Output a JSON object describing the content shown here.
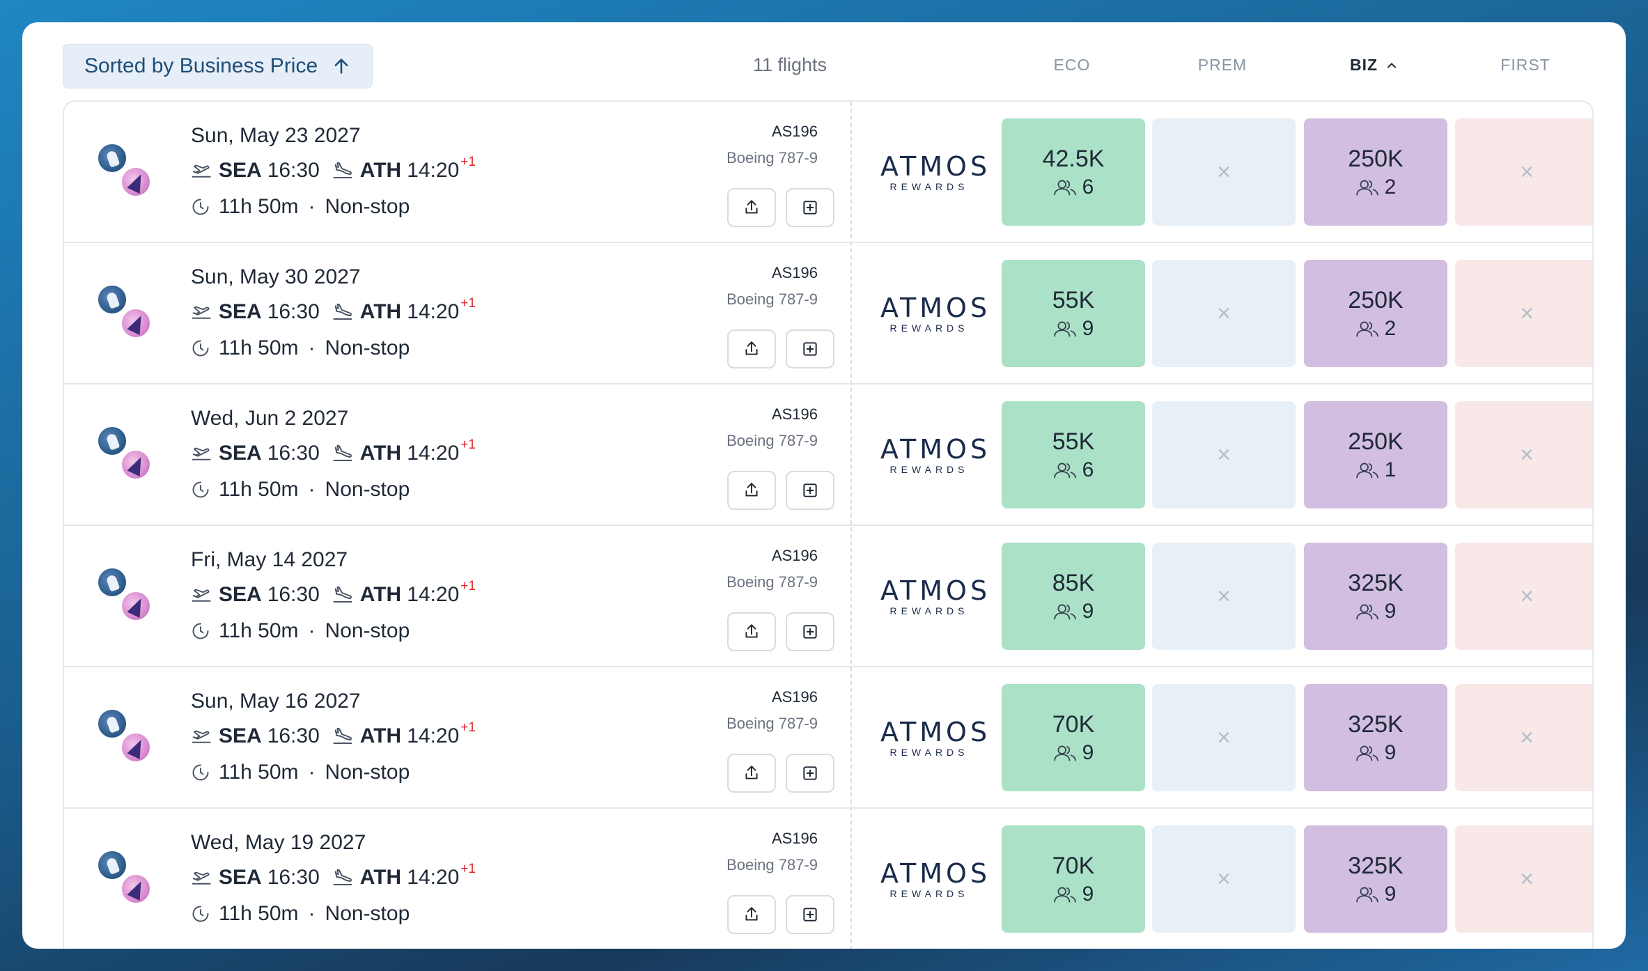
{
  "header": {
    "sort_label": "Sorted by Business Price",
    "flight_count": "11 flights",
    "columns": {
      "eco": "ECO",
      "prem": "PREM",
      "biz": "BIZ",
      "first": "FIRST"
    }
  },
  "brand": {
    "line1": "ATMOS",
    "line2": "REWARDS"
  },
  "icons": {
    "departure": "takeoff-icon",
    "arrival": "landing-icon",
    "duration": "clock-icon",
    "share": "share-icon",
    "add": "add-square-icon",
    "seats": "users-icon",
    "unavailable": "x-icon"
  },
  "colors": {
    "eco": "#abe1c6",
    "prem": "#e8f0f7",
    "biz": "#d2bee1",
    "first": "#f9e8e8",
    "day_offset": "#dc2626"
  },
  "flights": [
    {
      "date": "Sun, May 23 2027",
      "from": "SEA",
      "dep": "16:30",
      "to": "ATH",
      "arr": "14:20",
      "offset": "+1",
      "duration": "11h 50m",
      "stops": "Non-stop",
      "flight_no": "AS196",
      "aircraft": "Boeing 787-9",
      "eco_price": "42.5K",
      "eco_seats": "6",
      "biz_price": "250K",
      "biz_seats": "2",
      "prem": "×",
      "first": "×"
    },
    {
      "date": "Sun, May 30 2027",
      "from": "SEA",
      "dep": "16:30",
      "to": "ATH",
      "arr": "14:20",
      "offset": "+1",
      "duration": "11h 50m",
      "stops": "Non-stop",
      "flight_no": "AS196",
      "aircraft": "Boeing 787-9",
      "eco_price": "55K",
      "eco_seats": "9",
      "biz_price": "250K",
      "biz_seats": "2",
      "prem": "×",
      "first": "×"
    },
    {
      "date": "Wed, Jun 2 2027",
      "from": "SEA",
      "dep": "16:30",
      "to": "ATH",
      "arr": "14:20",
      "offset": "+1",
      "duration": "11h 50m",
      "stops": "Non-stop",
      "flight_no": "AS196",
      "aircraft": "Boeing 787-9",
      "eco_price": "55K",
      "eco_seats": "6",
      "biz_price": "250K",
      "biz_seats": "1",
      "prem": "×",
      "first": "×"
    },
    {
      "date": "Fri, May 14 2027",
      "from": "SEA",
      "dep": "16:30",
      "to": "ATH",
      "arr": "14:20",
      "offset": "+1",
      "duration": "11h 50m",
      "stops": "Non-stop",
      "flight_no": "AS196",
      "aircraft": "Boeing 787-9",
      "eco_price": "85K",
      "eco_seats": "9",
      "biz_price": "325K",
      "biz_seats": "9",
      "prem": "×",
      "first": "×"
    },
    {
      "date": "Sun, May 16 2027",
      "from": "SEA",
      "dep": "16:30",
      "to": "ATH",
      "arr": "14:20",
      "offset": "+1",
      "duration": "11h 50m",
      "stops": "Non-stop",
      "flight_no": "AS196",
      "aircraft": "Boeing 787-9",
      "eco_price": "70K",
      "eco_seats": "9",
      "biz_price": "325K",
      "biz_seats": "9",
      "prem": "×",
      "first": "×"
    },
    {
      "date": "Wed, May 19 2027",
      "from": "SEA",
      "dep": "16:30",
      "to": "ATH",
      "arr": "14:20",
      "offset": "+1",
      "duration": "11h 50m",
      "stops": "Non-stop",
      "flight_no": "AS196",
      "aircraft": "Boeing 787-9",
      "eco_price": "70K",
      "eco_seats": "9",
      "biz_price": "325K",
      "biz_seats": "9",
      "prem": "×",
      "first": "×"
    }
  ]
}
